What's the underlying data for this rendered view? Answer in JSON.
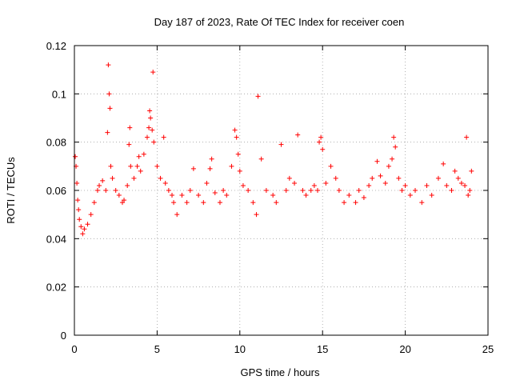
{
  "chart_data": {
    "type": "scatter",
    "title": "Day 187 of 2023, Rate Of TEC Index for receiver coen",
    "xlabel": "GPS time / hours",
    "ylabel": "ROTI / TECUs",
    "xlim": [
      0,
      25
    ],
    "ylim": [
      0,
      0.12
    ],
    "x_ticks": [
      0,
      5,
      10,
      15,
      20,
      25
    ],
    "x_tick_labels": [
      "0",
      "5",
      "10",
      "15",
      "20",
      "25"
    ],
    "y_ticks": [
      0,
      0.02,
      0.04,
      0.06,
      0.08,
      0.1,
      0.12
    ],
    "y_tick_labels": [
      "0",
      "0.02",
      "0.04",
      "0.06",
      "0.08",
      "0.1",
      "0.12"
    ],
    "grid": true,
    "marker": "plus",
    "color": "#ff0000",
    "series": [
      {
        "x": [
          0.05,
          0.1,
          0.15,
          0.2,
          0.25,
          0.3,
          0.4,
          0.5,
          0.6,
          0.8,
          1.0,
          1.2,
          1.4,
          1.5,
          1.7,
          1.9,
          2.0,
          2.05,
          2.1,
          2.15,
          2.2,
          2.3,
          2.5,
          2.7,
          2.9,
          3.0,
          3.2,
          3.3,
          3.35,
          3.4,
          3.6,
          3.8,
          3.9,
          4.0,
          4.2,
          4.4,
          4.5,
          4.55,
          4.6,
          4.7,
          4.75,
          4.8,
          5.0,
          5.2,
          5.4,
          5.5,
          5.7,
          5.9,
          6.0,
          6.2,
          6.5,
          6.8,
          7.0,
          7.2,
          7.5,
          7.8,
          8.0,
          8.2,
          8.3,
          8.5,
          8.8,
          9.0,
          9.2,
          9.5,
          9.7,
          9.8,
          9.9,
          10.0,
          10.2,
          10.5,
          10.8,
          11.0,
          11.1,
          11.3,
          11.6,
          12.0,
          12.2,
          12.5,
          12.8,
          13.0,
          13.3,
          13.5,
          13.8,
          14.0,
          14.3,
          14.5,
          14.7,
          14.8,
          14.9,
          15.0,
          15.2,
          15.5,
          15.8,
          16.0,
          16.3,
          16.6,
          17.0,
          17.2,
          17.5,
          17.8,
          18.0,
          18.3,
          18.5,
          18.8,
          19.0,
          19.2,
          19.3,
          19.4,
          19.6,
          19.8,
          20.0,
          20.3,
          20.6,
          21.0,
          21.3,
          21.6,
          22.0,
          22.3,
          22.5,
          22.8,
          23.0,
          23.2,
          23.4,
          23.6,
          23.7,
          23.8,
          23.9,
          24.0
        ],
        "y": [
          0.074,
          0.07,
          0.063,
          0.056,
          0.052,
          0.048,
          0.045,
          0.042,
          0.044,
          0.046,
          0.05,
          0.055,
          0.06,
          0.062,
          0.064,
          0.06,
          0.084,
          0.112,
          0.1,
          0.094,
          0.07,
          0.065,
          0.06,
          0.058,
          0.055,
          0.056,
          0.062,
          0.079,
          0.086,
          0.07,
          0.065,
          0.07,
          0.074,
          0.068,
          0.075,
          0.082,
          0.086,
          0.093,
          0.09,
          0.085,
          0.109,
          0.08,
          0.07,
          0.065,
          0.082,
          0.063,
          0.06,
          0.058,
          0.055,
          0.05,
          0.058,
          0.055,
          0.06,
          0.069,
          0.058,
          0.055,
          0.063,
          0.069,
          0.073,
          0.059,
          0.055,
          0.06,
          0.058,
          0.07,
          0.085,
          0.082,
          0.075,
          0.068,
          0.062,
          0.06,
          0.055,
          0.05,
          0.099,
          0.073,
          0.06,
          0.058,
          0.055,
          0.079,
          0.06,
          0.065,
          0.063,
          0.083,
          0.06,
          0.058,
          0.06,
          0.062,
          0.06,
          0.08,
          0.082,
          0.077,
          0.063,
          0.07,
          0.065,
          0.06,
          0.055,
          0.058,
          0.055,
          0.06,
          0.057,
          0.062,
          0.065,
          0.072,
          0.066,
          0.063,
          0.07,
          0.073,
          0.082,
          0.078,
          0.065,
          0.06,
          0.062,
          0.058,
          0.06,
          0.055,
          0.062,
          0.058,
          0.065,
          0.071,
          0.062,
          0.06,
          0.068,
          0.065,
          0.063,
          0.062,
          0.082,
          0.058,
          0.06,
          0.068
        ]
      }
    ]
  }
}
